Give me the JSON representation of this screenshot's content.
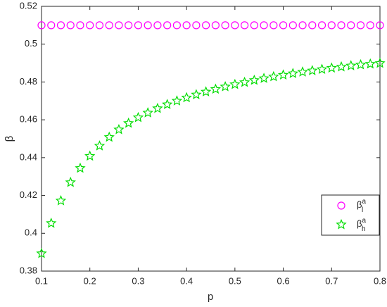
{
  "chart_data": {
    "type": "scatter",
    "xlabel": "p",
    "ylabel": "β",
    "xlim": [
      0.1,
      0.8
    ],
    "xticks": [
      0.1,
      0.2,
      0.3,
      0.4,
      0.5,
      0.6,
      0.7,
      0.8
    ],
    "ylim": [
      0.38,
      0.52
    ],
    "yticks": [
      0.38,
      0.4,
      0.42,
      0.44,
      0.46,
      0.48,
      0.5,
      0.52
    ],
    "legend": "right",
    "x": [
      0.1,
      0.12,
      0.14,
      0.16,
      0.18,
      0.2,
      0.22,
      0.24,
      0.26,
      0.28,
      0.3,
      0.32,
      0.34,
      0.36,
      0.38,
      0.4,
      0.42,
      0.44,
      0.46,
      0.48,
      0.5,
      0.52,
      0.54,
      0.56,
      0.58,
      0.6,
      0.62,
      0.64,
      0.66,
      0.68,
      0.7,
      0.72,
      0.74,
      0.76,
      0.78,
      0.8
    ],
    "series": [
      {
        "name": "β",
        "name_sub": "l",
        "name_sup": "a",
        "marker": "circle",
        "color": "#ff00ff",
        "values": [
          0.51,
          0.51,
          0.51,
          0.51,
          0.51,
          0.51,
          0.51,
          0.51,
          0.51,
          0.51,
          0.51,
          0.51,
          0.51,
          0.51,
          0.51,
          0.51,
          0.51,
          0.51,
          0.51,
          0.51,
          0.51,
          0.51,
          0.51,
          0.51,
          0.51,
          0.51,
          0.51,
          0.51,
          0.51,
          0.51,
          0.51,
          0.51,
          0.51,
          0.51,
          0.51,
          0.51
        ]
      },
      {
        "name": "β",
        "name_sub": "h",
        "name_sup": "a",
        "marker": "star",
        "color": "#00dd00",
        "values": [
          0.3893,
          0.4053,
          0.4172,
          0.4269,
          0.4344,
          0.4408,
          0.4462,
          0.4508,
          0.4548,
          0.4582,
          0.4612,
          0.4637,
          0.466,
          0.4681,
          0.47,
          0.4717,
          0.4733,
          0.4748,
          0.4762,
          0.4775,
          0.4787,
          0.4798,
          0.4809,
          0.4819,
          0.4828,
          0.4837,
          0.4845,
          0.4853,
          0.486,
          0.4867,
          0.4874,
          0.488,
          0.4886,
          0.4891,
          0.4895,
          0.4899
        ]
      }
    ]
  }
}
